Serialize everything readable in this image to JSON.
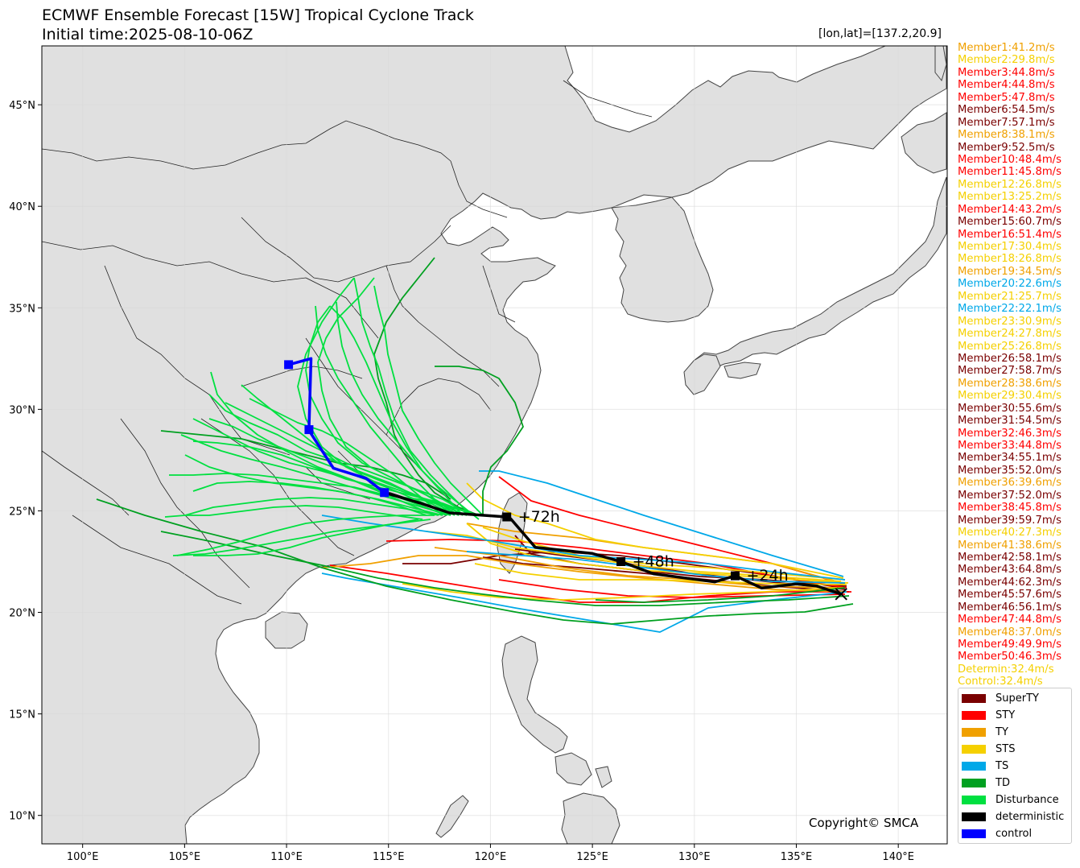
{
  "title_line1": "ECMWF Ensemble Forecast [15W] Tropical Cyclone Track",
  "title_line2": "Initial time:2025-08-10-06Z",
  "coord_readout": "[lon,lat]=[137.2,20.9]",
  "copyright": "Copyright© SMCA",
  "axes": {
    "lon_ticks": [
      "100°E",
      "105°E",
      "110°E",
      "115°E",
      "120°E",
      "125°E",
      "130°E",
      "135°E",
      "140°E"
    ],
    "lat_ticks": [
      "45°N",
      "40°N",
      "35°N",
      "30°N",
      "25°N",
      "20°N",
      "15°N",
      "10°N"
    ],
    "lon_range": [
      98,
      142.4
    ],
    "lat_range": [
      8.6,
      47.9
    ]
  },
  "colors": {
    "SuperTY": "#7a0000",
    "STY": "#ff0000",
    "TY": "#f0a000",
    "STS": "#f5d000",
    "TS": "#00a8e8",
    "TD": "#00a020",
    "Disturbance": "#00e040",
    "deterministic": "#000000",
    "control": "#0000ff",
    "land": "#e0e0e0",
    "grid": "#f0f0f0"
  },
  "members": [
    {
      "text": "Member1:41.2m/s",
      "cat": "TY"
    },
    {
      "text": "Member2:29.8m/s",
      "cat": "STS"
    },
    {
      "text": "Member3:44.8m/s",
      "cat": "STY"
    },
    {
      "text": "Member4:44.8m/s",
      "cat": "STY"
    },
    {
      "text": "Member5:47.8m/s",
      "cat": "STY"
    },
    {
      "text": "Member6:54.5m/s",
      "cat": "SuperTY"
    },
    {
      "text": "Member7:57.1m/s",
      "cat": "SuperTY"
    },
    {
      "text": "Member8:38.1m/s",
      "cat": "TY"
    },
    {
      "text": "Member9:52.5m/s",
      "cat": "SuperTY"
    },
    {
      "text": "Member10:48.4m/s",
      "cat": "STY"
    },
    {
      "text": "Member11:45.8m/s",
      "cat": "STY"
    },
    {
      "text": "Member12:26.8m/s",
      "cat": "STS"
    },
    {
      "text": "Member13:25.2m/s",
      "cat": "STS"
    },
    {
      "text": "Member14:43.2m/s",
      "cat": "STY"
    },
    {
      "text": "Member15:60.7m/s",
      "cat": "SuperTY"
    },
    {
      "text": "Member16:51.4m/s",
      "cat": "STY"
    },
    {
      "text": "Member17:30.4m/s",
      "cat": "STS"
    },
    {
      "text": "Member18:26.8m/s",
      "cat": "STS"
    },
    {
      "text": "Member19:34.5m/s",
      "cat": "TY"
    },
    {
      "text": "Member20:22.6m/s",
      "cat": "TS"
    },
    {
      "text": "Member21:25.7m/s",
      "cat": "STS"
    },
    {
      "text": "Member22:22.1m/s",
      "cat": "TS"
    },
    {
      "text": "Member23:30.9m/s",
      "cat": "STS"
    },
    {
      "text": "Member24:27.8m/s",
      "cat": "STS"
    },
    {
      "text": "Member25:26.8m/s",
      "cat": "STS"
    },
    {
      "text": "Member26:58.1m/s",
      "cat": "SuperTY"
    },
    {
      "text": "Member27:58.7m/s",
      "cat": "SuperTY"
    },
    {
      "text": "Member28:38.6m/s",
      "cat": "TY"
    },
    {
      "text": "Member29:30.4m/s",
      "cat": "STS"
    },
    {
      "text": "Member30:55.6m/s",
      "cat": "SuperTY"
    },
    {
      "text": "Member31:54.5m/s",
      "cat": "SuperTY"
    },
    {
      "text": "Member32:46.3m/s",
      "cat": "STY"
    },
    {
      "text": "Member33:44.8m/s",
      "cat": "STY"
    },
    {
      "text": "Member34:55.1m/s",
      "cat": "SuperTY"
    },
    {
      "text": "Member35:52.0m/s",
      "cat": "SuperTY"
    },
    {
      "text": "Member36:39.6m/s",
      "cat": "TY"
    },
    {
      "text": "Member37:52.0m/s",
      "cat": "SuperTY"
    },
    {
      "text": "Member38:45.8m/s",
      "cat": "STY"
    },
    {
      "text": "Member39:59.7m/s",
      "cat": "SuperTY"
    },
    {
      "text": "Member40:27.3m/s",
      "cat": "STS"
    },
    {
      "text": "Member41:38.6m/s",
      "cat": "TY"
    },
    {
      "text": "Member42:58.1m/s",
      "cat": "SuperTY"
    },
    {
      "text": "Member43:64.8m/s",
      "cat": "SuperTY"
    },
    {
      "text": "Member44:62.3m/s",
      "cat": "SuperTY"
    },
    {
      "text": "Member45:57.6m/s",
      "cat": "SuperTY"
    },
    {
      "text": "Member46:56.1m/s",
      "cat": "SuperTY"
    },
    {
      "text": "Member47:44.8m/s",
      "cat": "STY"
    },
    {
      "text": "Member48:37.0m/s",
      "cat": "TY"
    },
    {
      "text": "Member49:49.9m/s",
      "cat": "STY"
    },
    {
      "text": "Member50:46.3m/s",
      "cat": "STY"
    },
    {
      "text": "Determin:32.4m/s",
      "cat": "STS"
    },
    {
      "text": "Control:32.4m/s",
      "cat": "STS"
    }
  ],
  "legend": [
    {
      "label": "SuperTY",
      "cat": "SuperTY"
    },
    {
      "label": "STY",
      "cat": "STY"
    },
    {
      "label": "TY",
      "cat": "TY"
    },
    {
      "label": "STS",
      "cat": "STS"
    },
    {
      "label": "TS",
      "cat": "TS"
    },
    {
      "label": "TD",
      "cat": "TD"
    },
    {
      "label": "Disturbance",
      "cat": "Disturbance"
    },
    {
      "label": "deterministic",
      "cat": "deterministic"
    },
    {
      "label": "control",
      "cat": "control"
    }
  ],
  "deterministic_track": {
    "points": [
      [
        137.2,
        20.9
      ],
      [
        136.0,
        21.3
      ],
      [
        135.0,
        21.4
      ],
      [
        133.3,
        21.2
      ],
      [
        132.0,
        21.8
      ],
      [
        131.0,
        21.5
      ],
      [
        128.0,
        21.9
      ],
      [
        126.4,
        22.5
      ],
      [
        125.0,
        22.9
      ],
      [
        122.2,
        23.2
      ],
      [
        121.0,
        24.6
      ],
      [
        120.8,
        24.7
      ],
      [
        118.0,
        24.9
      ],
      [
        116.5,
        25.4
      ],
      [
        114.8,
        25.9
      ]
    ],
    "markers": [
      {
        "lon": 132.0,
        "lat": 21.8,
        "label": "+24h"
      },
      {
        "lon": 126.4,
        "lat": 22.5,
        "label": "+48h"
      },
      {
        "lon": 120.8,
        "lat": 24.7,
        "label": "+72h"
      }
    ]
  },
  "control_track": {
    "points": [
      [
        114.8,
        25.9
      ],
      [
        113.9,
        26.6
      ],
      [
        112.3,
        27.1
      ],
      [
        111.2,
        28.8
      ],
      [
        111.1,
        29.0
      ],
      [
        111.2,
        32.5
      ],
      [
        110.1,
        32.2
      ]
    ],
    "markers": [
      {
        "lon": 114.8,
        "lat": 25.9
      },
      {
        "lon": 111.1,
        "lat": 29.0
      },
      {
        "lon": 110.1,
        "lat": 32.2
      }
    ]
  }
}
